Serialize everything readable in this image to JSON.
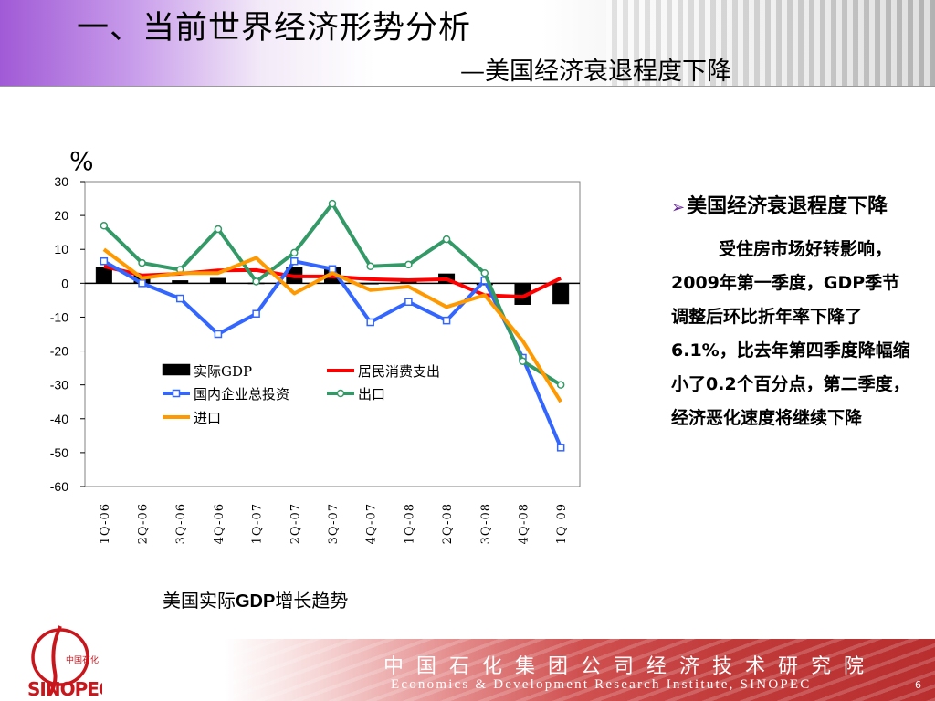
{
  "header": {
    "title": "一、当前世界经济形势分析",
    "subtitle": "—美国经济衰退程度下降"
  },
  "chart_data": {
    "type": "line",
    "unit_label": "%",
    "categories": [
      "1Q-06",
      "2Q-06",
      "3Q-06",
      "4Q-06",
      "1Q-07",
      "2Q-07",
      "3Q-07",
      "4Q-07",
      "1Q-08",
      "2Q-08",
      "3Q-08",
      "4Q-08",
      "1Q-09"
    ],
    "ylim": [
      -60,
      30
    ],
    "yticks": [
      30,
      20,
      10,
      0,
      -10,
      -20,
      -30,
      -40,
      -50,
      -60
    ],
    "grid": false,
    "legend_position": "inside-lower-left",
    "series": [
      {
        "name": "实际GDP",
        "type": "bar",
        "color": "#000000",
        "values": [
          4.8,
          2.7,
          0.8,
          1.5,
          0.1,
          4.8,
          4.8,
          -0.2,
          0.9,
          2.8,
          -0.5,
          -6.3,
          -6.1
        ]
      },
      {
        "name": "居民消费支出",
        "type": "line",
        "color": "#ff0000",
        "values": [
          5.0,
          2.3,
          2.8,
          3.8,
          3.9,
          2.0,
          2.0,
          1.2,
          0.9,
          1.2,
          -3.5,
          -4.0,
          1.5
        ]
      },
      {
        "name": "国内企业总投资",
        "type": "line",
        "color": "#3366ff",
        "values": [
          6.5,
          0,
          -4.5,
          -15,
          -9,
          6.5,
          4.2,
          -11.5,
          -5.5,
          -11,
          0.8,
          -22,
          -48.5
        ]
      },
      {
        "name": "出口",
        "type": "line",
        "color": "#339966",
        "values": [
          17,
          6,
          4,
          16,
          0.5,
          9,
          23.5,
          5,
          5.5,
          13,
          3,
          -23,
          -30
        ]
      },
      {
        "name": "进口",
        "type": "line",
        "color": "#ff9900",
        "values": [
          10,
          1.5,
          3,
          3,
          7.5,
          -3,
          3,
          -2,
          -1,
          -7,
          -3.5,
          -17,
          -35
        ]
      }
    ]
  },
  "caption": {
    "prefix": "美国实际",
    "bold": "GDP",
    "suffix": "增长趋势"
  },
  "panel": {
    "bullet": "美国经济衰退程度下降",
    "paragraph": "受住房市场好转影响，2009年第一季度，GDP季节调整后环比折年率下降了6.1%，比去年第四季度降幅缩小了0.2个百分点，第二季度，经济恶化速度将继续下降"
  },
  "footer": {
    "cn": "中国石化集团公司经济技术研究院",
    "en": "Economics & Development Research Institute, SINOPEC",
    "page": "6"
  },
  "logo": {
    "name": "SINOPEC",
    "cn_text": "中国石化"
  }
}
